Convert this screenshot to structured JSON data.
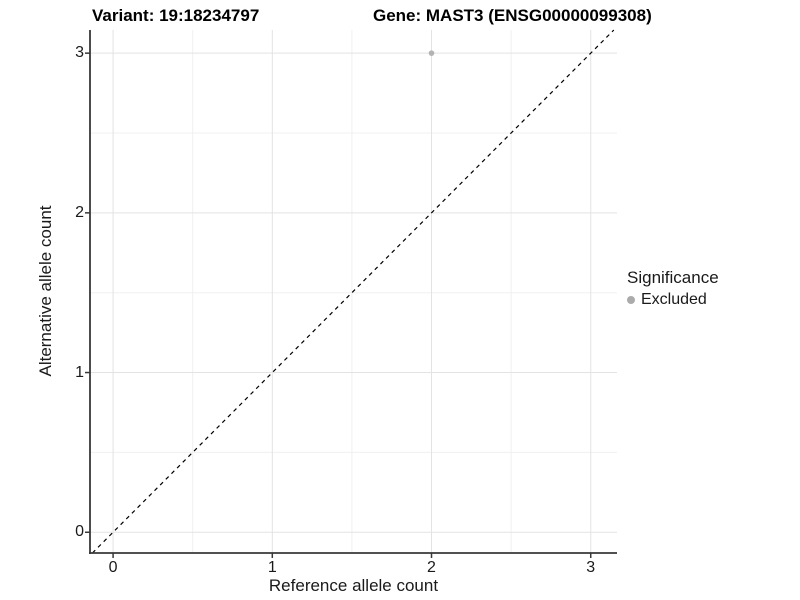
{
  "chart_data": {
    "type": "scatter",
    "title_left": "Variant: 19:18234797",
    "title_right": "Gene: MAST3 (ENSG00000099308)",
    "xlabel": "Reference allele count",
    "ylabel": "Alternative allele count",
    "xlim": [
      -0.145,
      3.165
    ],
    "ylim": [
      -0.13,
      3.145
    ],
    "xticks": [
      0,
      1,
      2,
      3
    ],
    "yticks": [
      0,
      1,
      2,
      3
    ],
    "minor_ticks_x": [
      0.5,
      1.5,
      2.5
    ],
    "minor_ticks_y": [
      0.5,
      1.5,
      2.5
    ],
    "grid": true,
    "series": [
      {
        "name": "Excluded",
        "points": [
          {
            "x": 2,
            "y": 3
          }
        ]
      }
    ],
    "reference_line": {
      "type": "identity",
      "style": "dashed"
    },
    "legend": {
      "title": "Significance",
      "position": "right",
      "entries": [
        {
          "label": "Excluded"
        }
      ]
    }
  },
  "colors": {
    "background": "#ffffff",
    "grid_major": "#e3e3e3",
    "grid_minor": "#f0f0f0",
    "axis_line": "#383838",
    "tick_mark": "#383838",
    "text": "#1a1a1a",
    "title": "#000000",
    "point": "#b3b3b3",
    "legend_point": "#ababab",
    "identity_line": "#000000"
  }
}
